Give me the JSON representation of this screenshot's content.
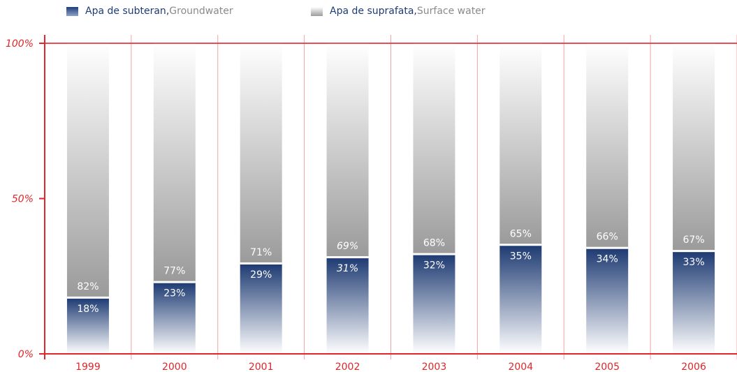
{
  "legend": {
    "groundwater": {
      "ro": "Apa de subteran",
      "sep": ", ",
      "en": "Groundwater"
    },
    "surface": {
      "ro": "Apa de suprafata",
      "sep": ", ",
      "en": "Surface water"
    }
  },
  "colors": {
    "axis": "#e0262a",
    "grid": "#f0a3a3",
    "groundwater_top": "#1d3a72",
    "groundwater_bottom": "#ffffff",
    "surface_top": "#ffffff",
    "surface_bottom": "#9a9a9a",
    "label_ground": "#ffffff",
    "label_surface": "#ffffff"
  },
  "chart_data": {
    "type": "bar",
    "stacked": true,
    "categories": [
      "1999",
      "2000",
      "2001",
      "2002",
      "2003",
      "2004",
      "2005",
      "2006"
    ],
    "series": [
      {
        "name": "Apa de subteran, Groundwater",
        "values": [
          18,
          23,
          29,
          31,
          32,
          35,
          34,
          33
        ],
        "labels": [
          "18%",
          "23%",
          "29%",
          "31%",
          "32%",
          "35%",
          "34%",
          "33%"
        ]
      },
      {
        "name": "Apa de suprafata, Surface water",
        "values": [
          82,
          77,
          71,
          69,
          68,
          65,
          66,
          67
        ],
        "labels": [
          "82%",
          "77%",
          "71%",
          "69%",
          "68%",
          "65%",
          "66%",
          "67%"
        ]
      }
    ],
    "yticks": [
      "0%",
      "50%",
      "100%"
    ],
    "ytick_values": [
      0,
      50,
      100
    ],
    "ylim": [
      0,
      100
    ],
    "grid": true,
    "legend_position": "top-left"
  }
}
